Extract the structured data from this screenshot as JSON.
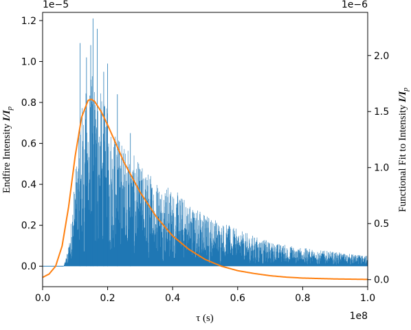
{
  "chart_data": {
    "type": "line",
    "xlabel": "τ (s)",
    "x_offset_label": "1e8",
    "xlim": [
      0.0,
      1.0
    ],
    "x_ticks": [
      0.0,
      0.2,
      0.4,
      0.6,
      0.8,
      1.0
    ],
    "x_tick_labels": [
      "0.0",
      "0.2",
      "0.4",
      "0.6",
      "0.8",
      "1.0"
    ],
    "left_axis": {
      "label_plain": "Endfire Intensity ",
      "label_italic": "I/I",
      "label_sub": "p",
      "offset_label": "1e−5",
      "ylim": [
        -0.1,
        1.24
      ],
      "ticks": [
        0.0,
        0.2,
        0.4,
        0.6,
        0.8,
        1.0,
        1.2
      ],
      "tick_labels": [
        "0.0",
        "0.2",
        "0.4",
        "0.6",
        "0.8",
        "1.0",
        "1.2"
      ]
    },
    "right_axis": {
      "label_plain": "Functional Fit to Intensity ",
      "label_italic": "I/I",
      "label_sub": "p",
      "offset_label": "1e−6",
      "ylim": [
        -0.063,
        2.385
      ],
      "ticks": [
        0.0,
        0.5,
        1.0,
        1.5,
        2.0
      ],
      "tick_labels": [
        "0.0",
        "0.5",
        "1.0",
        "1.5",
        "2.0"
      ]
    },
    "series": [
      {
        "role": "signal",
        "axis": "left",
        "color": "#1f77b4",
        "style": "dense noisy signal",
        "onset_x": 0.065,
        "envelope": {
          "x": [
            0.065,
            0.08,
            0.1,
            0.12,
            0.15,
            0.18,
            0.22,
            0.3,
            0.4,
            0.5,
            0.6,
            0.7,
            0.8,
            0.9,
            1.0
          ],
          "y": [
            0.0,
            0.1,
            0.45,
            0.8,
            0.95,
            0.85,
            0.68,
            0.5,
            0.38,
            0.26,
            0.18,
            0.12,
            0.09,
            0.07,
            0.05
          ]
        },
        "peaks": [
          [
            0.115,
            1.09
          ],
          [
            0.135,
            1.02
          ],
          [
            0.148,
            1.08
          ],
          [
            0.155,
            1.21
          ],
          [
            0.168,
            1.16
          ],
          [
            0.188,
            0.95
          ],
          [
            0.2,
            0.99
          ],
          [
            0.23,
            0.84
          ],
          [
            0.27,
            0.65
          ]
        ]
      },
      {
        "role": "fit",
        "axis": "right",
        "color": "#ff7f0e",
        "style": "smooth curve",
        "x": [
          0.0,
          0.02,
          0.04,
          0.06,
          0.08,
          0.1,
          0.12,
          0.14,
          0.15,
          0.16,
          0.18,
          0.2,
          0.22,
          0.25,
          0.3,
          0.35,
          0.4,
          0.45,
          0.5,
          0.55,
          0.6,
          0.65,
          0.7,
          0.75,
          0.8,
          0.9,
          1.0
        ],
        "y": [
          0.02,
          0.05,
          0.12,
          0.3,
          0.65,
          1.1,
          1.45,
          1.6,
          1.61,
          1.59,
          1.5,
          1.38,
          1.25,
          1.05,
          0.78,
          0.56,
          0.39,
          0.27,
          0.18,
          0.12,
          0.08,
          0.055,
          0.035,
          0.022,
          0.014,
          0.006,
          0.002
        ]
      }
    ]
  }
}
